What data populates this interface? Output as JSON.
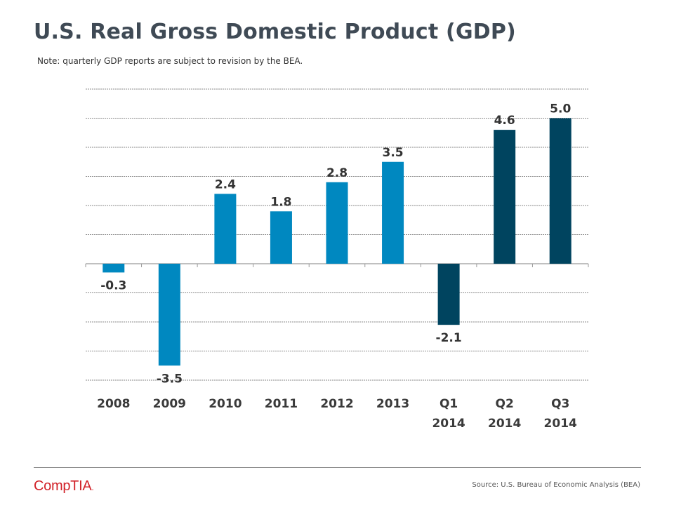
{
  "header": {
    "title": "U.S. Real Gross Domestic Product (GDP)",
    "note": "Note: quarterly GDP reports are subject to revision by the BEA."
  },
  "chart_data": {
    "type": "bar",
    "title": "U.S. Real Gross Domestic Product (GDP)",
    "xlabel": "",
    "ylabel": "",
    "ylim": [
      -4,
      6
    ],
    "grid": true,
    "categories": [
      [
        "2008"
      ],
      [
        "2009"
      ],
      [
        "2010"
      ],
      [
        "2011"
      ],
      [
        "2012"
      ],
      [
        "2013"
      ],
      [
        "Q1",
        "2014"
      ],
      [
        "Q2",
        "2014"
      ],
      [
        "Q3",
        "2014"
      ]
    ],
    "values": [
      -0.3,
      -3.5,
      2.4,
      1.8,
      2.8,
      3.5,
      -2.1,
      4.6,
      5.0
    ],
    "value_labels": [
      "-0.3",
      "-3.5",
      "2.4",
      "1.8",
      "2.8",
      "3.5",
      "-2.1",
      "4.6",
      "5.0"
    ],
    "series_colors": [
      "#0088c0",
      "#0088c0",
      "#0088c0",
      "#0088c0",
      "#0088c0",
      "#0088c0",
      "#00445f",
      "#00445f",
      "#00445f"
    ]
  },
  "footer": {
    "logo": "CompTIA",
    "source": "Source: U.S. Bureau of Economic Analysis (BEA)"
  },
  "colors": {
    "title": "#3f4a55",
    "annual_bar": "#0088c0",
    "quarterly_bar": "#00445f",
    "logo": "#d2232a"
  }
}
